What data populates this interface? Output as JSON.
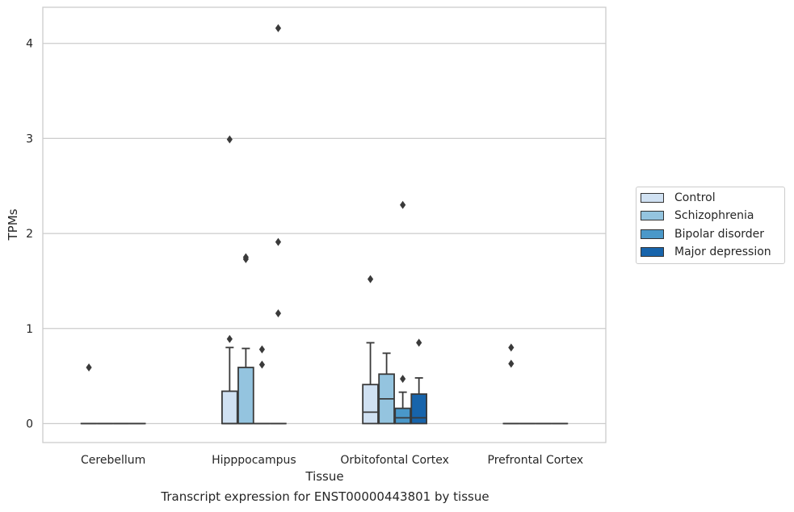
{
  "chart_data": {
    "type": "box",
    "title": "",
    "caption": "Transcript expression for ENST00000443801 by tissue",
    "xlabel": "Tissue",
    "ylabel": "TPMs",
    "ylim": [
      -0.2,
      4.38
    ],
    "yticks": [
      0,
      1,
      2,
      3,
      4
    ],
    "grid": "horizontal",
    "legend_position": "right",
    "categories": [
      "Cerebellum",
      "Hipppocampus",
      "Orbitofontal Cortex",
      "Prefrontal Cortex"
    ],
    "series": [
      {
        "name": "Control",
        "color": "#d0e1f2",
        "boxes": [
          {
            "q1": 0,
            "median": 0,
            "q3": 0,
            "whisker_low": 0,
            "whisker_high": 0,
            "outliers": [
              0.59
            ]
          },
          {
            "q1": 0,
            "median": 0,
            "q3": 0.34,
            "whisker_low": 0,
            "whisker_high": 0.8,
            "outliers": [
              0.89,
              2.99
            ]
          },
          {
            "q1": 0,
            "median": 0.12,
            "q3": 0.41,
            "whisker_low": 0,
            "whisker_high": 0.85,
            "outliers": [
              1.52
            ]
          },
          {
            "q1": 0,
            "median": 0,
            "q3": 0,
            "whisker_low": 0,
            "whisker_high": 0,
            "outliers": [
              0.63,
              0.8
            ]
          }
        ]
      },
      {
        "name": "Schizophrenia",
        "color": "#94c4df",
        "boxes": [
          {
            "q1": 0,
            "median": 0,
            "q3": 0,
            "whisker_low": 0,
            "whisker_high": 0,
            "outliers": []
          },
          {
            "q1": 0,
            "median": 0,
            "q3": 0.59,
            "whisker_low": 0,
            "whisker_high": 0.79,
            "outliers": [
              1.73,
              1.75
            ]
          },
          {
            "q1": 0,
            "median": 0.26,
            "q3": 0.52,
            "whisker_low": 0,
            "whisker_high": 0.74,
            "outliers": []
          },
          {
            "q1": 0,
            "median": 0,
            "q3": 0,
            "whisker_low": 0,
            "whisker_high": 0,
            "outliers": []
          }
        ]
      },
      {
        "name": "Bipolar disorder",
        "color": "#4a98c9",
        "boxes": [
          {
            "q1": 0,
            "median": 0,
            "q3": 0,
            "whisker_low": 0,
            "whisker_high": 0,
            "outliers": []
          },
          {
            "q1": 0,
            "median": 0,
            "q3": 0,
            "whisker_low": 0,
            "whisker_high": 0,
            "outliers": [
              0.62,
              0.78
            ]
          },
          {
            "q1": 0,
            "median": 0.06,
            "q3": 0.16,
            "whisker_low": 0,
            "whisker_high": 0.33,
            "outliers": [
              0.47,
              2.3
            ]
          },
          {
            "q1": 0,
            "median": 0,
            "q3": 0,
            "whisker_low": 0,
            "whisker_high": 0,
            "outliers": []
          }
        ]
      },
      {
        "name": "Major depression",
        "color": "#1764ab",
        "boxes": [
          {
            "q1": 0,
            "median": 0,
            "q3": 0,
            "whisker_low": 0,
            "whisker_high": 0,
            "outliers": []
          },
          {
            "q1": 0,
            "median": 0,
            "q3": 0,
            "whisker_low": 0,
            "whisker_high": 0,
            "outliers": [
              1.16,
              1.91,
              4.16
            ]
          },
          {
            "q1": 0,
            "median": 0.06,
            "q3": 0.31,
            "whisker_low": 0,
            "whisker_high": 0.48,
            "outliers": [
              0.85
            ]
          },
          {
            "q1": 0,
            "median": 0,
            "q3": 0,
            "whisker_low": 0,
            "whisker_high": 0,
            "outliers": []
          }
        ]
      }
    ]
  }
}
